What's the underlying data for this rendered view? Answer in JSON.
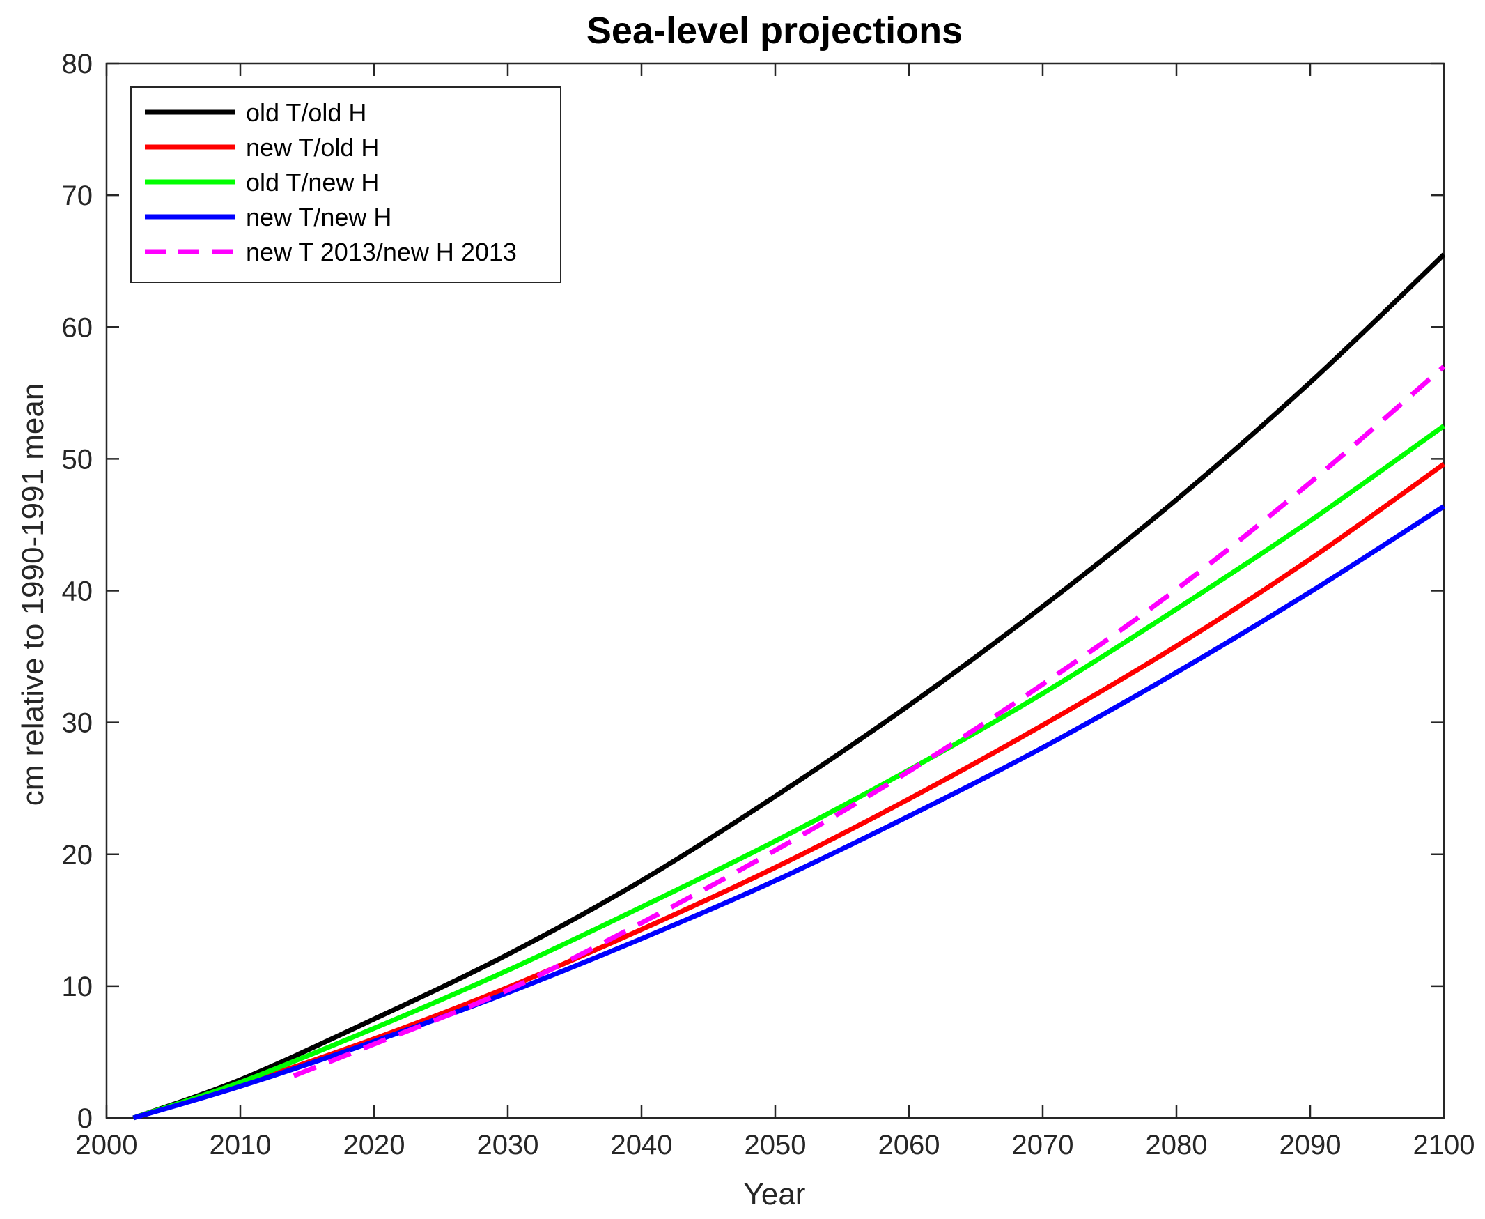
{
  "chart_data": {
    "type": "line",
    "title": "Sea-level projections",
    "xlabel": "Year",
    "ylabel": "cm relative to 1990-1991 mean",
    "xlim": [
      2000,
      2100
    ],
    "ylim": [
      0,
      80
    ],
    "xticks": [
      2000,
      2010,
      2020,
      2030,
      2040,
      2050,
      2060,
      2070,
      2080,
      2090,
      2100
    ],
    "yticks": [
      0,
      10,
      20,
      30,
      40,
      50,
      60,
      70,
      80
    ],
    "xtick_labels": [
      "2000",
      "2010",
      "2020",
      "2030",
      "2040",
      "2050",
      "2060",
      "2070",
      "2080",
      "2090",
      "2100"
    ],
    "ytick_labels": [
      "0",
      "10",
      "20",
      "30",
      "40",
      "50",
      "60",
      "70",
      "80"
    ],
    "grid": false,
    "legend_position": "top-left",
    "x": [
      2002,
      2010,
      2020,
      2030,
      2040,
      2050,
      2060,
      2070,
      2080,
      2090,
      2100
    ],
    "series": [
      {
        "name": "old T/old H",
        "color": "#000000",
        "dash": "solid",
        "x": [
          2002,
          2010,
          2020,
          2030,
          2040,
          2050,
          2060,
          2070,
          2080,
          2090,
          2100
        ],
        "values": [
          0,
          2.9,
          7.5,
          12.4,
          18.0,
          24.4,
          31.3,
          38.8,
          46.9,
          55.8,
          65.5
        ]
      },
      {
        "name": "new T/old H",
        "color": "#ff0000",
        "dash": "solid",
        "x": [
          2002,
          2010,
          2020,
          2030,
          2040,
          2050,
          2060,
          2070,
          2080,
          2090,
          2100
        ],
        "values": [
          0,
          2.5,
          6.0,
          9.9,
          14.3,
          19.0,
          24.2,
          29.8,
          35.8,
          42.4,
          49.6
        ]
      },
      {
        "name": "old T/new H",
        "color": "#00ff00",
        "dash": "solid",
        "x": [
          2002,
          2010,
          2020,
          2030,
          2040,
          2050,
          2060,
          2070,
          2080,
          2090,
          2100
        ],
        "values": [
          0,
          2.7,
          6.8,
          11.2,
          16.0,
          21.0,
          26.4,
          32.2,
          38.6,
          45.3,
          52.5
        ]
      },
      {
        "name": "new T/new H",
        "color": "#0000ff",
        "dash": "solid",
        "x": [
          2002,
          2010,
          2020,
          2030,
          2040,
          2050,
          2060,
          2070,
          2080,
          2090,
          2100
        ],
        "values": [
          0,
          2.4,
          5.8,
          9.5,
          13.6,
          18.0,
          22.9,
          28.1,
          33.8,
          39.9,
          46.4
        ]
      },
      {
        "name": "new T 2013/new H 2013",
        "color": "#ff00ff",
        "dash": "dashed",
        "x": [
          2014,
          2020,
          2030,
          2040,
          2050,
          2060,
          2070,
          2080,
          2090,
          2100
        ],
        "values": [
          3.2,
          5.6,
          9.7,
          14.8,
          20.3,
          26.3,
          32.9,
          40.1,
          48.2,
          57.0
        ]
      }
    ]
  }
}
